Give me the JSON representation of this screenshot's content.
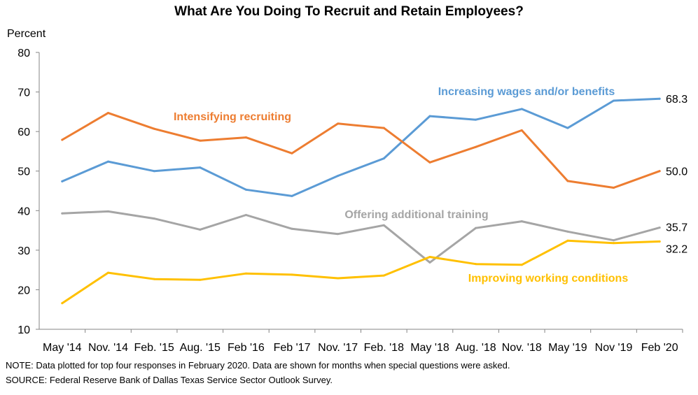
{
  "chart_data": {
    "type": "line",
    "title": "What Are You Doing To Recruit and Retain Employees?",
    "ylabel": "Percent",
    "xlabel": "",
    "ylim": [
      10,
      80
    ],
    "yticks": [
      10,
      20,
      30,
      40,
      50,
      60,
      70,
      80
    ],
    "grid": false,
    "categories": [
      "May '14",
      "Nov. '14",
      "Feb. '15",
      "Aug. '15",
      "Feb '16",
      "Feb '17",
      "Nov. '17",
      "Feb. '18",
      "May '18",
      "Aug. '18",
      "Nov. '18",
      "May '19",
      "Nov '19",
      "Feb '20"
    ],
    "series": [
      {
        "name": "Increasing wages and/or benefits",
        "color": "#5b9bd5",
        "values": [
          47.4,
          52.4,
          50.0,
          50.9,
          45.3,
          43.7,
          48.8,
          53.2,
          63.9,
          63.0,
          65.7,
          60.9,
          67.8,
          68.3
        ],
        "end_label": "68.3"
      },
      {
        "name": "Intensifying recruiting",
        "color": "#ed7d31",
        "values": [
          57.9,
          64.7,
          60.7,
          57.7,
          58.5,
          54.5,
          62.0,
          60.9,
          52.2,
          56.1,
          60.3,
          47.5,
          45.8,
          50.0
        ],
        "end_label": "50.0"
      },
      {
        "name": "Offering additional training",
        "color": "#a5a5a5",
        "values": [
          39.3,
          39.8,
          38.0,
          35.2,
          38.9,
          35.4,
          34.1,
          36.3,
          26.9,
          35.6,
          37.3,
          34.7,
          32.5,
          35.7
        ],
        "end_label": "35.7"
      },
      {
        "name": "Improving working conditions",
        "color": "#ffc000",
        "values": [
          16.6,
          24.3,
          22.7,
          22.5,
          24.1,
          23.8,
          22.9,
          23.6,
          28.3,
          26.5,
          26.3,
          32.4,
          31.8,
          32.2
        ],
        "end_label": "32.2"
      }
    ]
  },
  "notes": {
    "note": "NOTE: Data plotted for top four responses in February 2020. Data are shown for months when special questions were asked.",
    "source": "SOURCE: Federal Reserve Bank of Dallas Texas Service Sector Outlook Survey."
  }
}
